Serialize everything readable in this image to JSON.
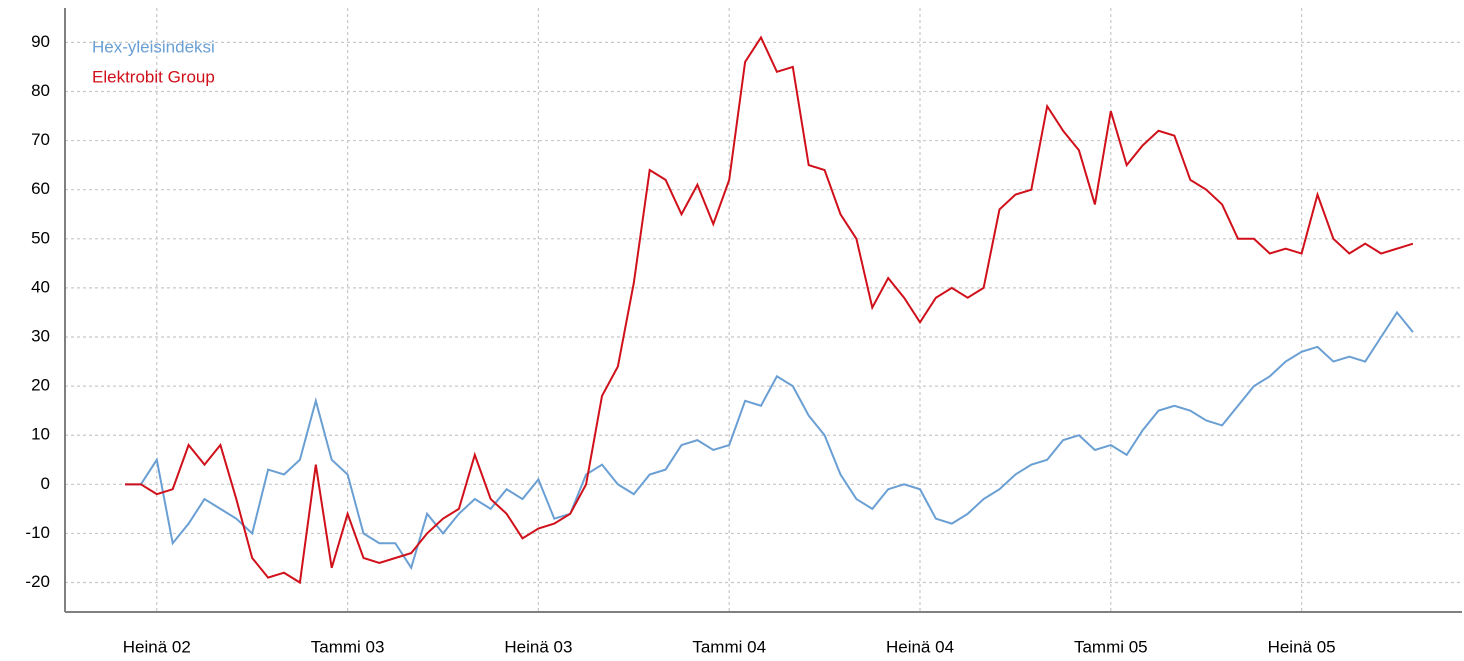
{
  "chart_data": {
    "type": "line",
    "categories": [
      null,
      null,
      "Heinä 02",
      null,
      null,
      null,
      null,
      null,
      null,
      null,
      null,
      null,
      null,
      null,
      "Tammi 03",
      null,
      null,
      null,
      null,
      null,
      null,
      null,
      null,
      null,
      null,
      null,
      "Heinä 03",
      null,
      null,
      null,
      null,
      null,
      null,
      null,
      null,
      null,
      null,
      null,
      "Tammi 04",
      null,
      null,
      null,
      null,
      null,
      null,
      null,
      null,
      null,
      null,
      null,
      "Heinä 04",
      null,
      null,
      null,
      null,
      null,
      null,
      null,
      null,
      null,
      null,
      null,
      "Tammi 05",
      null,
      null,
      null,
      null,
      null,
      null,
      null,
      null,
      null,
      null,
      null,
      "Heinä 05",
      null,
      null,
      null,
      null,
      null,
      null,
      null
    ],
    "series": [
      {
        "name": "Hex-yleisindeksi",
        "color": "#6a9fd4",
        "values": [
          0,
          0,
          5,
          -12,
          -8,
          -3,
          -5,
          -7,
          -10,
          3,
          2,
          5,
          17,
          5,
          2,
          -10,
          -12,
          -12,
          -17,
          -6,
          -10,
          -6,
          -3,
          -5,
          -1,
          -3,
          1,
          -7,
          -6,
          2,
          4,
          0,
          -2,
          2,
          3,
          8,
          9,
          7,
          8,
          17,
          16,
          22,
          20,
          14,
          10,
          2,
          -3,
          -5,
          -1,
          0,
          -1,
          -7,
          -8,
          -6,
          -3,
          -1,
          2,
          4,
          5,
          9,
          10,
          7,
          8,
          6,
          11,
          15,
          16,
          15,
          13,
          12,
          16,
          20,
          22,
          25,
          27,
          28,
          25,
          26,
          25,
          30,
          35,
          31
        ]
      },
      {
        "name": "Elektrobit Group",
        "color": "#d0101a",
        "values": [
          0,
          0,
          -2,
          -1,
          8,
          4,
          8,
          -3,
          -15,
          -19,
          -18,
          -20,
          4,
          -17,
          -6,
          -15,
          -16,
          -15,
          -14,
          -10,
          -7,
          -5,
          6,
          -3,
          -6,
          -11,
          -9,
          -8,
          -6,
          0,
          18,
          24,
          41,
          64,
          62,
          55,
          61,
          53,
          62,
          86,
          91,
          84,
          85,
          65,
          64,
          55,
          50,
          36,
          42,
          38,
          33,
          38,
          40,
          38,
          40,
          56,
          59,
          60,
          77,
          72,
          68,
          57,
          76,
          65,
          69,
          72,
          71,
          62,
          60,
          57,
          50,
          50,
          47,
          48,
          47,
          59,
          50,
          47,
          49,
          47,
          48,
          49
        ]
      }
    ],
    "ylim": [
      -26,
      97
    ],
    "yticks": [
      -20,
      -10,
      0,
      10,
      20,
      30,
      40,
      50,
      60,
      70,
      80,
      90
    ],
    "grid": true,
    "legend": "upper left"
  }
}
